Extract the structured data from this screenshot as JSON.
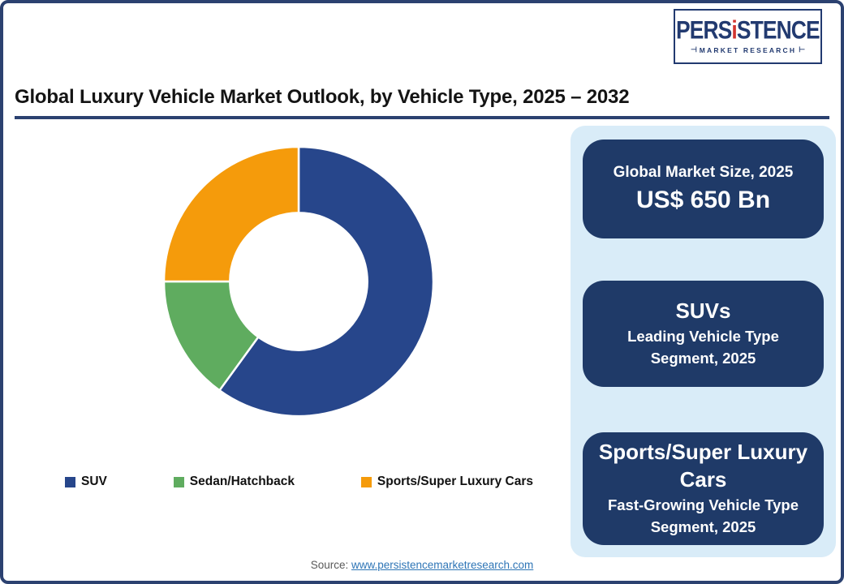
{
  "page": {
    "title": "Global Luxury Vehicle Market Outlook, by Vehicle Type, 2025 – 2032"
  },
  "logo": {
    "brand_pre": "PERS",
    "brand_i": "i",
    "brand_post": "STENCE",
    "subtitle": "MARKET RESEARCH",
    "tack_left": "⊣",
    "tack_right": "⊢"
  },
  "chart_data": {
    "type": "pie",
    "subtype": "donut",
    "title": "Global Luxury Vehicle Market Outlook, by Vehicle Type, 2025 – 2032",
    "unit": "percent share (estimated from arc angles, no numeric labels shown)",
    "segments": [
      {
        "label": "SUV",
        "value": 60,
        "color": "#27468B"
      },
      {
        "label": "Sedan/Hatchback",
        "value": 15,
        "color": "#5FAC5F"
      },
      {
        "label": "Sports/Super Luxury Cars",
        "value": 25,
        "color": "#F59B0B"
      }
    ],
    "start_angle_deg": 0,
    "clockwise": true,
    "inner_radius_ratio": 0.51,
    "legend_position": "bottom",
    "segment_separator_color": "#FFFFFF"
  },
  "info_panel": {
    "card_market_size": {
      "heading": "Global Market Size, 2025",
      "value": "US$ 650 Bn"
    },
    "card_leading": {
      "title": "SUVs",
      "body": "Leading Vehicle Type Segment, 2025"
    },
    "card_fast_growing": {
      "title": "Sports/Super Luxury Cars",
      "body": "Fast-Growing Vehicle Type Segment, 2025"
    }
  },
  "source": {
    "prefix": "Source: ",
    "link": "www.persistencemarketresearch.com"
  },
  "colors": {
    "frame_navy": "#2B4170",
    "card_navy": "#1F3A68",
    "panel_light_blue": "#D9ECF8",
    "logo_navy": "#223A70",
    "logo_red": "#D23530",
    "link_blue": "#2E75B6",
    "source_gray": "#595959"
  }
}
